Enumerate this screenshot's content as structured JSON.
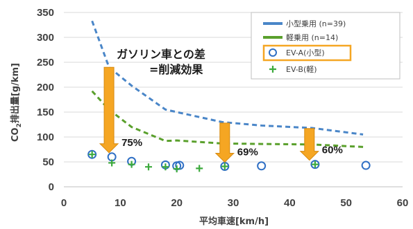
{
  "chart_data": {
    "type": "scatter",
    "xlabel": "平均車速[km/h]",
    "ylabel": "CO2排出量[g/km]",
    "ylabel_parts": [
      "CO",
      "2",
      "排出量[g/km]"
    ],
    "xlim": [
      0,
      60
    ],
    "ylim": [
      0,
      350
    ],
    "x_ticks": [
      0,
      10,
      20,
      30,
      40,
      50,
      60
    ],
    "y_ticks": [
      0,
      50,
      100,
      150,
      200,
      250,
      300,
      350
    ],
    "grid": true,
    "legend_position": "top-right",
    "series": [
      {
        "name": "小型乗用 (n=39)",
        "type": "line",
        "color": "#4a86c8",
        "style": "dashed",
        "x": [
          5,
          8,
          12,
          18,
          20,
          28,
          35,
          44,
          53
        ],
        "y": [
          333,
          240,
          203,
          155,
          150,
          130,
          123,
          118,
          105
        ]
      },
      {
        "name": "軽乗用 (n=14)",
        "type": "line",
        "color": "#5aa02c",
        "style": "dashed",
        "x": [
          5,
          8,
          12,
          18,
          20,
          28,
          35,
          44,
          53
        ],
        "y": [
          192,
          155,
          120,
          92,
          93,
          87,
          86,
          85,
          80
        ]
      },
      {
        "name": "EV-A(小型)",
        "type": "scatter",
        "marker": "circle",
        "color": "#2f6fc4",
        "x": [
          5,
          8.5,
          12,
          18,
          20,
          20.5,
          28.5,
          35,
          44.5,
          53.5
        ],
        "y": [
          65,
          60,
          51,
          44,
          42,
          43,
          41,
          42,
          45,
          43
        ]
      },
      {
        "name": "EV-B(軽)",
        "type": "scatter",
        "marker": "plus",
        "color": "#3daa3d",
        "x": [
          5,
          8.5,
          12,
          15,
          18,
          20,
          24,
          28.5,
          44.5
        ],
        "y": [
          65,
          48,
          45,
          40,
          40,
          36,
          37,
          41,
          45
        ]
      }
    ],
    "annotations": {
      "headline": "ガソリン車との差",
      "subline": "=削減効果",
      "arrows": [
        {
          "x": 8,
          "y_top": 240,
          "y_bottom": 60,
          "label": "75%"
        },
        {
          "x": 28.5,
          "y_top": 128,
          "y_bottom": 41,
          "label": "69%"
        },
        {
          "x": 43.5,
          "y_top": 117,
          "y_bottom": 45,
          "label": "60%"
        }
      ],
      "highlight_color": "#f5a623"
    }
  }
}
